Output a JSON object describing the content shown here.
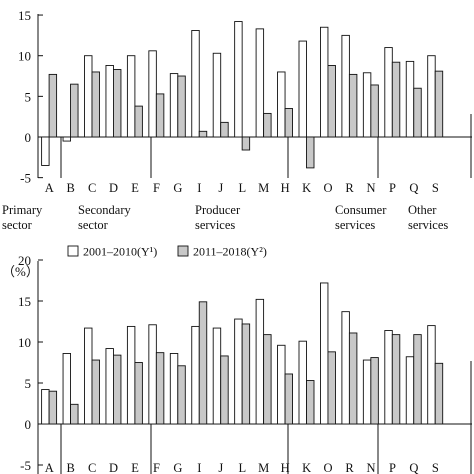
{
  "legend": {
    "series1": "2001–2010(Y¹)",
    "series2": "2011–2018(Y²)"
  },
  "colors": {
    "series1": "#ffffff",
    "series2": "#c8c8c8",
    "stroke": "#111111"
  },
  "chart_data": [
    {
      "type": "bar",
      "title": "",
      "ylabel": "",
      "ylim": [
        -5,
        15
      ],
      "yticks": [
        -5,
        0,
        5,
        10,
        15
      ],
      "grid": false,
      "categories": [
        "A",
        "B",
        "C",
        "D",
        "E",
        "F",
        "G",
        "I",
        "J",
        "L",
        "M",
        "H",
        "K",
        "O",
        "R",
        "N",
        "P",
        "Q",
        "S"
      ],
      "series": [
        {
          "name": "2001–2010(Y¹)",
          "values": [
            -3.5,
            -0.5,
            10,
            8.8,
            10,
            10.6,
            7.8,
            13.1,
            10.3,
            14.2,
            13.3,
            8,
            11.8,
            13.5,
            12.5,
            7.9,
            11,
            9.3,
            10
          ]
        },
        {
          "name": "2011–2018(Y²)",
          "values": [
            7.7,
            6.5,
            8,
            8.3,
            3.8,
            5.3,
            7.5,
            0.7,
            1.8,
            -1.6,
            2.9,
            3.5,
            -3.8,
            8.8,
            7.7,
            6.4,
            9.2,
            6,
            8.1
          ]
        }
      ],
      "group_labels": [
        {
          "lines": [
            "Primary",
            "sector"
          ]
        },
        {
          "lines": [
            "Secondary",
            "sector"
          ]
        },
        {
          "lines": [
            "Producer",
            "services"
          ]
        },
        {
          "lines": [
            "Consumer",
            "services"
          ]
        },
        {
          "lines": [
            "Other",
            "services"
          ]
        }
      ]
    },
    {
      "type": "bar",
      "title": "",
      "ylabel": "（%）",
      "ylim": [
        -5,
        20
      ],
      "yticks": [
        -5,
        0,
        5,
        10,
        15,
        20
      ],
      "grid": false,
      "categories": [
        "A",
        "B",
        "C",
        "D",
        "E",
        "F",
        "G",
        "I",
        "J",
        "L",
        "M",
        "H",
        "K",
        "O",
        "R",
        "N",
        "P",
        "Q",
        "S"
      ],
      "series": [
        {
          "name": "2001–2010(Y¹)",
          "values": [
            4.2,
            8.6,
            11.7,
            9.2,
            11.9,
            12.1,
            8.6,
            11.9,
            11.7,
            12.8,
            15.2,
            9.6,
            10.1,
            17.2,
            13.7,
            7.8,
            11.4,
            8.2,
            12
          ]
        },
        {
          "name": "2011–2018(Y²)",
          "values": [
            4,
            2.4,
            7.8,
            8.4,
            7.5,
            8.7,
            7.1,
            14.9,
            8.3,
            12.2,
            10.9,
            6.1,
            5.3,
            8.8,
            11.1,
            8.1,
            10.9,
            10.9,
            7.4
          ]
        }
      ]
    }
  ]
}
